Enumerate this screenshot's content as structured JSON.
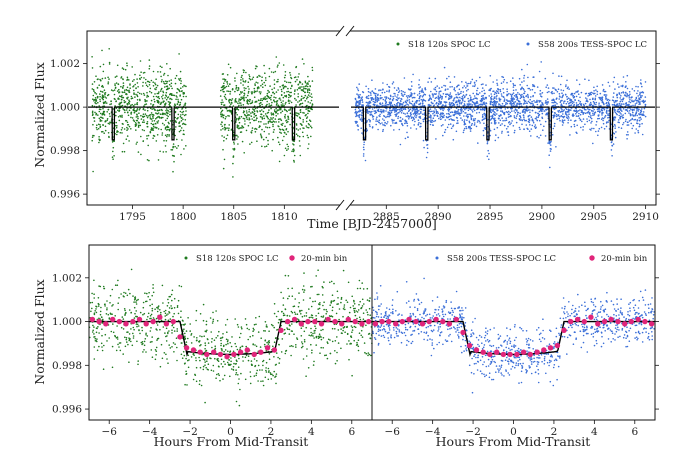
{
  "colors": {
    "green": "#1f7a1f",
    "blue": "#3b6fd8",
    "bin": "#e0257a",
    "model": "#000000"
  },
  "chart_data": [
    {
      "type": "scatter",
      "panel": "top",
      "ylabel": "Normalized Flux",
      "xlabel": "Time [BJD-2457000]",
      "ylim": [
        0.9955,
        1.0035
      ],
      "yticks": [
        "0.996",
        "0.998",
        "1.000",
        "1.002"
      ],
      "ytick_values": [
        0.996,
        0.998,
        1.0,
        1.002
      ],
      "broken_x_axis": true,
      "segments": [
        {
          "xlim": [
            1790.5,
            1815.5
          ],
          "ticks": [
            "1795",
            "1800",
            "1805",
            "1810"
          ],
          "tick_values": [
            1795,
            1800,
            1805,
            1810
          ]
        },
        {
          "xlim": [
            2881.5,
            2911.0
          ],
          "ticks": [
            "2885",
            "2890",
            "2895",
            "2900",
            "2905",
            "2910"
          ],
          "tick_values": [
            2885,
            2890,
            2895,
            2900,
            2905,
            2910
          ]
        }
      ],
      "series": [
        {
          "name": "S18 120s SPOC LC",
          "color": "green",
          "segment": 0,
          "time_ranges": [
            [
              1791.0,
              1800.3
            ],
            [
              1803.7,
              1812.8
            ]
          ],
          "scatter_sigma": 0.00085,
          "transit_times": [
            1793.1,
            1799.0,
            1805.0,
            1810.9
          ],
          "transit_depth": 0.0015
        },
        {
          "name": "S58 200s TESS-SPOC LC",
          "color": "blue",
          "segment": 1,
          "time_ranges": [
            [
              2882.0,
              2910.0
            ]
          ],
          "scatter_sigma": 0.00055,
          "transit_times": [
            2882.9,
            2888.9,
            2894.8,
            2900.8,
            2906.7
          ],
          "transit_depth": 0.0015
        }
      ],
      "legend": [
        "S18 120s SPOC LC",
        "S58 200s TESS-SPOC LC"
      ],
      "legend_position": "top-right"
    },
    {
      "type": "scatter",
      "panel": "bottom-left",
      "ylabel": "Normalized Flux",
      "xlabel": "Hours From Mid-Transit",
      "xlim": [
        -7,
        7
      ],
      "ylim": [
        0.9955,
        1.0035
      ],
      "xticks": [
        "−6",
        "−4",
        "−2",
        "0",
        "2",
        "4",
        "6"
      ],
      "xtick_values": [
        -6,
        -4,
        -2,
        0,
        2,
        4,
        6
      ],
      "yticks": [
        "0.996",
        "0.998",
        "1.000",
        "1.002"
      ],
      "ytick_values": [
        0.996,
        0.998,
        1.0,
        1.002
      ],
      "legend": [
        "S18 120s SPOC LC",
        "20-min bin"
      ],
      "legend_position": "top-right",
      "model": {
        "depth": 0.0015,
        "t14_hours": 5.0,
        "ingress_hours": 0.35
      },
      "points_sigma": 0.00085,
      "bins": {
        "x": [
          -6.83,
          -6.5,
          -6.17,
          -5.83,
          -5.5,
          -5.17,
          -4.83,
          -4.5,
          -4.17,
          -3.83,
          -3.5,
          -3.17,
          -2.83,
          -2.5,
          -2.17,
          -1.83,
          -1.5,
          -1.17,
          -0.83,
          -0.5,
          -0.17,
          0.17,
          0.5,
          0.83,
          1.17,
          1.5,
          1.83,
          2.17,
          2.5,
          2.83,
          3.17,
          3.5,
          3.83,
          4.17,
          4.5,
          4.83,
          5.17,
          5.5,
          5.83,
          6.17,
          6.5,
          6.83
        ],
        "y": [
          1.0001,
          1.0,
          0.9999,
          1.0001,
          1.0,
          0.9999,
          1.0,
          1.0001,
          0.9999,
          1.0,
          1.0002,
          0.9999,
          1.0,
          0.9993,
          0.9988,
          0.9987,
          0.9986,
          0.9985,
          0.9986,
          0.9985,
          0.9984,
          0.9985,
          0.9986,
          0.9987,
          0.9985,
          0.9986,
          0.9988,
          0.9987,
          0.9996,
          1.0,
          1.0001,
          0.9999,
          1.0,
          1.0,
          0.9999,
          1.0001,
          1.0,
          0.9999,
          1.0001,
          1.0,
          0.9999,
          1.0
        ]
      }
    },
    {
      "type": "scatter",
      "panel": "bottom-right",
      "xlabel": "Hours From Mid-Transit",
      "xlim": [
        -7,
        7
      ],
      "ylim": [
        0.9955,
        1.0035
      ],
      "xticks": [
        "−6",
        "−4",
        "−2",
        "0",
        "2",
        "4",
        "6"
      ],
      "xtick_values": [
        -6,
        -4,
        -2,
        0,
        2,
        4,
        6
      ],
      "legend": [
        "S58 200s TESS-SPOC LC",
        "20-min bin"
      ],
      "legend_position": "top-right",
      "model": {
        "depth": 0.0015,
        "t14_hours": 5.0,
        "ingress_hours": 0.35
      },
      "points_sigma": 0.00055,
      "bins": {
        "x": [
          -6.83,
          -6.5,
          -6.17,
          -5.83,
          -5.5,
          -5.17,
          -4.83,
          -4.5,
          -4.17,
          -3.83,
          -3.5,
          -3.17,
          -2.83,
          -2.5,
          -2.17,
          -1.83,
          -1.5,
          -1.17,
          -0.83,
          -0.5,
          -0.17,
          0.17,
          0.5,
          0.83,
          1.17,
          1.5,
          1.83,
          2.17,
          2.5,
          2.83,
          3.17,
          3.5,
          3.83,
          4.17,
          4.5,
          4.83,
          5.17,
          5.5,
          5.83,
          6.17,
          6.5,
          6.83
        ],
        "y": [
          0.9999,
          1.0,
          1.0,
          0.9999,
          1.0,
          1.0001,
          1.0,
          0.9999,
          1.0,
          1.0001,
          1.0,
          0.9999,
          1.0001,
          0.9995,
          0.9989,
          0.9987,
          0.9986,
          0.9985,
          0.9986,
          0.9985,
          0.9985,
          0.9985,
          0.9986,
          0.9985,
          0.9986,
          0.9987,
          0.9988,
          0.9989,
          0.9996,
          1.0,
          1.0001,
          1.0,
          1.0002,
          0.9999,
          1.0,
          1.0001,
          1.0,
          0.9999,
          1.0,
          1.0001,
          1.0,
          0.9999
        ]
      }
    }
  ]
}
